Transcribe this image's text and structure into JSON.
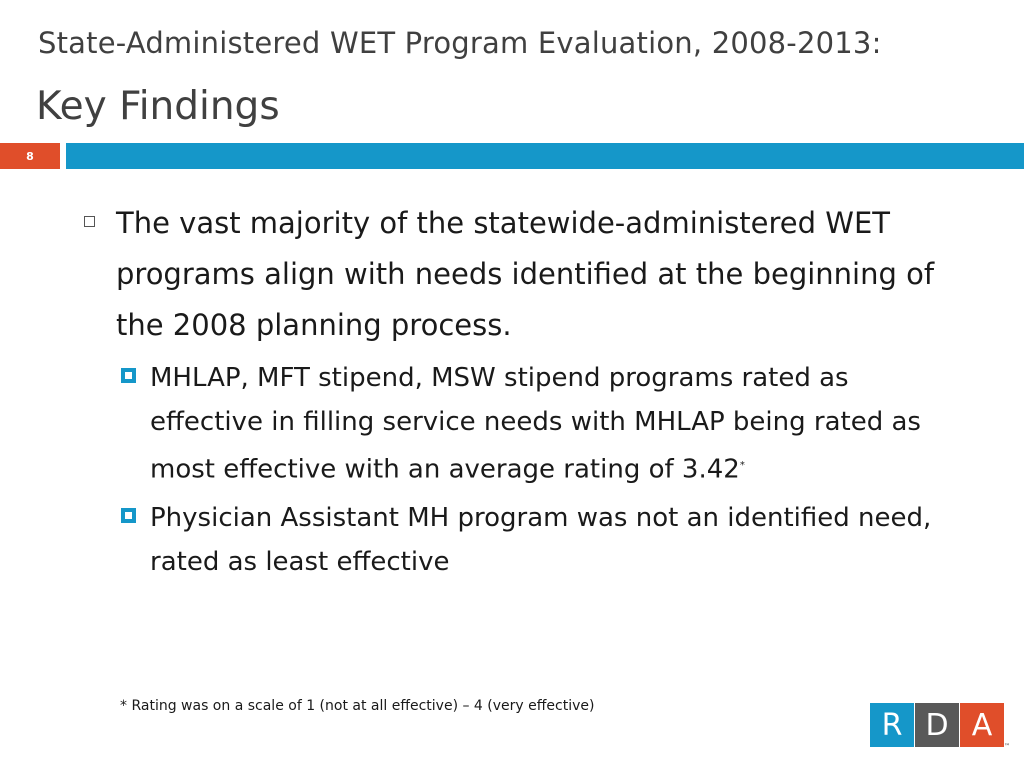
{
  "title": {
    "line1": "State-Administered WET Program Evaluation, 2008-2013:",
    "line2": "Key Findings"
  },
  "slide_number": "8",
  "colors": {
    "accent_blue": "#1597c9",
    "accent_orange": "#e04e2a",
    "logo_gray": "#595959",
    "title_gray": "#404040"
  },
  "bullets": [
    {
      "text": "The vast majority of the statewide-administered WET programs align with needs identified at the beginning of the 2008 planning process.",
      "marker_icon": "hollow-square-bullet",
      "sub": [
        {
          "text": "MHLAP, MFT stipend, MSW stipend programs rated as effective in filling service needs with MHLAP being rated as most effective with an average rating of 3.42",
          "superscript": "*",
          "marker_icon": "blue-square-bullet"
        },
        {
          "text": "Physician Assistant MH program was not an identified need, rated as least effective",
          "marker_icon": "blue-square-bullet"
        }
      ]
    }
  ],
  "footnote": "* Rating was on a scale of 1 (not at all effective) – 4 (very effective)",
  "logo": {
    "letters": [
      "R",
      "D",
      "A"
    ],
    "trademark": "™"
  }
}
